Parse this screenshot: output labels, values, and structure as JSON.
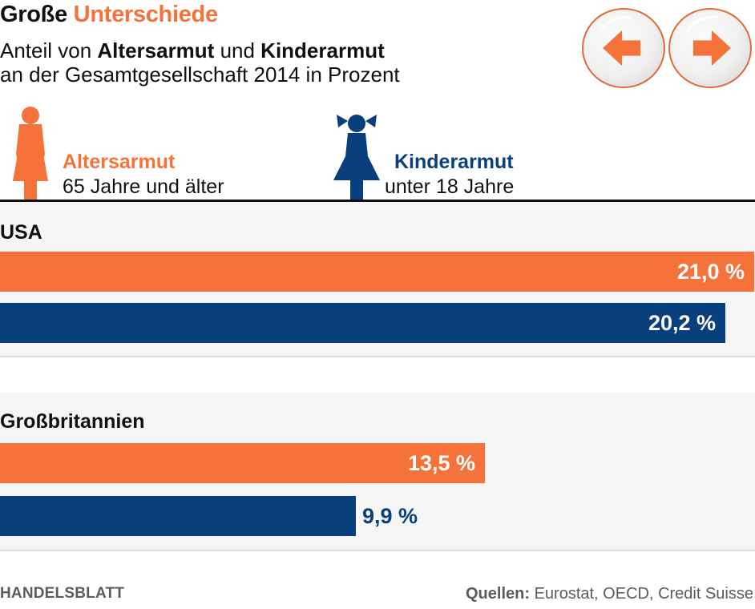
{
  "header": {
    "title_part1": "Große",
    "title_part2": "Unterschiede",
    "subtitle_line1": {
      "pre": "Anteil von ",
      "bold1": "Altersarmut",
      "mid": " und ",
      "bold2": "Kinderarmut"
    },
    "subtitle_line2": "an der Gesamtgesellschaft 2014 in Prozent"
  },
  "navigation": {
    "prev_icon": "arrow-left-icon",
    "next_icon": "arrow-right-icon"
  },
  "colors": {
    "altersarmut": "#f5733a",
    "kinderarmut": "#0a3f7d",
    "panel_bg": "#f5f5f5",
    "footer_text": "#5f5b57"
  },
  "legend": [
    {
      "name": "Altersarmut",
      "sub": "65 Jahre und älter",
      "icon": "woman-figure-icon"
    },
    {
      "name": "Kinderarmut",
      "sub": "unter 18 Jahre",
      "icon": "girl-figure-icon"
    }
  ],
  "chart_data": {
    "type": "bar",
    "orientation": "horizontal",
    "title": "Große Unterschiede",
    "subtitle": "Anteil von Altersarmut und Kinderarmut an der Gesamtgesellschaft 2014 in Prozent",
    "categories": [
      "USA",
      "Großbritannien"
    ],
    "series": [
      {
        "name": "Altersarmut",
        "description": "65 Jahre und älter",
        "values": [
          21.0,
          13.5
        ],
        "labels": [
          "21,0 %",
          "13,5 %"
        ]
      },
      {
        "name": "Kinderarmut",
        "description": "unter 18 Jahre",
        "values": [
          20.2,
          9.9
        ],
        "labels": [
          "20,2 %",
          "9,9 %"
        ]
      }
    ],
    "xlabel": "",
    "ylabel": "",
    "xlim": [
      0,
      21.0
    ],
    "grid": false,
    "legend_position": "top"
  },
  "footer": {
    "brand": "HANDELSBLATT",
    "source_label": "Quellen:",
    "source_text": " Eurostat, OECD, Credit Suisse"
  }
}
